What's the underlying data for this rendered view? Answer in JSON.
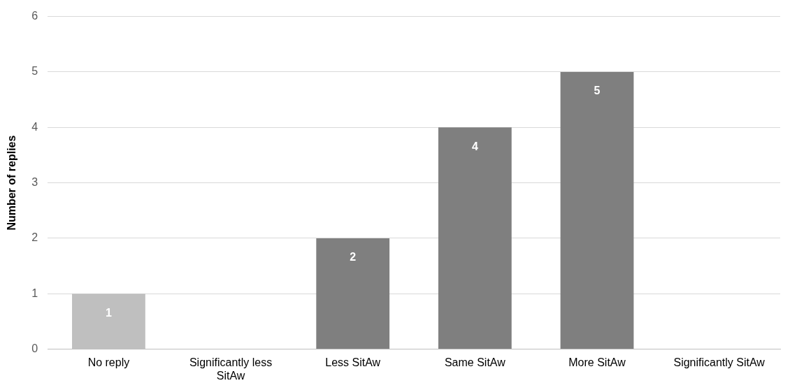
{
  "chart_data": {
    "type": "bar",
    "ylabel": "Number of replies",
    "categories": [
      "No reply",
      "Significantly less SitAw",
      "Less SitAw",
      "Same SitAw",
      "More SitAw",
      "Significantly SitAw"
    ],
    "values": [
      1,
      0,
      2,
      4,
      5,
      0
    ],
    "colors": [
      "#bfbfbf",
      "#7f7f7f",
      "#7f7f7f",
      "#7f7f7f",
      "#7f7f7f",
      "#7f7f7f"
    ],
    "value_labels": [
      "1",
      null,
      "2",
      "4",
      "5",
      null
    ],
    "ylim": [
      0,
      6
    ],
    "yticks": [
      0,
      1,
      2,
      3,
      4,
      5,
      6
    ],
    "grid": "y",
    "legend": false
  }
}
